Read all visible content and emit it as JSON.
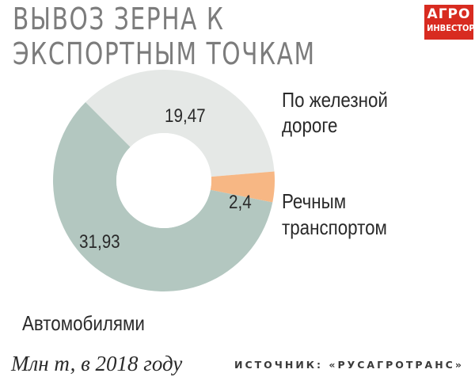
{
  "title": "ВЫВОЗ ЗЕРНА К ЭКСПОРТНЫМ ТОЧКАМ",
  "logo": {
    "line1": "АГРО",
    "line2": "ИНВЕСТОР"
  },
  "units": "Млн т, в 2018 году",
  "source": "ИСТОЧНИК: «РУСАГРОТРАНС»",
  "colors": {
    "rail": "#e5e8e6",
    "river": "#f7b784",
    "auto": "#b3c7c0",
    "logo": "#d82b20"
  },
  "chart_data": {
    "type": "pie",
    "variant": "donut",
    "title": "ВЫВОЗ ЗЕРНА К ЭКСПОРТНЫМ ТОЧКАМ",
    "unit": "Млн т, в 2018 году",
    "slices": [
      {
        "label": "По железной дороге",
        "value": 19.47,
        "display": "19,47",
        "color": "#e5e8e6"
      },
      {
        "label": "Речным транспортом",
        "value": 2.4,
        "display": "2,4",
        "color": "#f7b784"
      },
      {
        "label": "Автомобилями",
        "value": 31.93,
        "display": "31,93",
        "color": "#b3c7c0"
      }
    ]
  }
}
